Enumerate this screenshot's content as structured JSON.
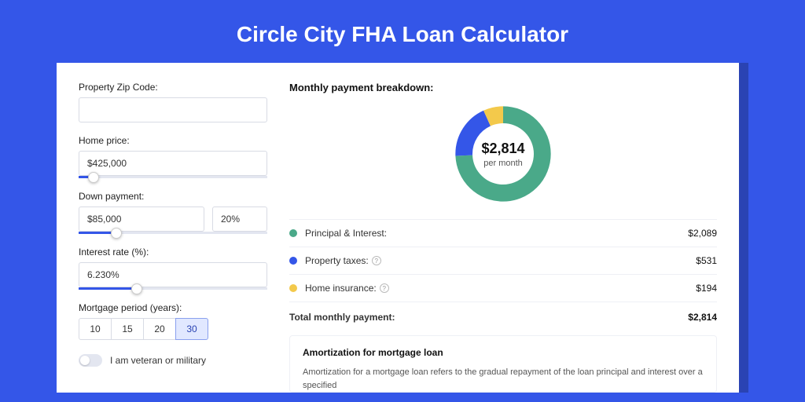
{
  "page": {
    "title": "Circle City FHA Loan Calculator",
    "bg_color": "#3456e8",
    "shadow_color": "#2a43b3",
    "card_bg": "#ffffff"
  },
  "form": {
    "zip": {
      "label": "Property Zip Code:",
      "value": ""
    },
    "home_price": {
      "label": "Home price:",
      "value": "$425,000",
      "slider_pct": 8
    },
    "down_payment": {
      "label": "Down payment:",
      "amount": "$85,000",
      "pct": "20%",
      "slider_pct": 20
    },
    "interest_rate": {
      "label": "Interest rate (%):",
      "value": "6.230%",
      "slider_pct": 31
    },
    "period": {
      "label": "Mortgage period (years):",
      "options": [
        "10",
        "15",
        "20",
        "30"
      ],
      "active": "30"
    },
    "veteran": {
      "label": "I am veteran or military",
      "on": false
    }
  },
  "breakdown": {
    "title": "Monthly payment breakdown:",
    "center_amount": "$2,814",
    "center_sub": "per month",
    "donut": {
      "type": "donut",
      "radius": 46,
      "stroke_width": 20,
      "circumference": 289.027,
      "background_color": "#ffffff",
      "slices": [
        {
          "key": "principal_interest",
          "value": 2089,
          "fraction": 0.742,
          "color": "#4aa989"
        },
        {
          "key": "property_taxes",
          "value": 531,
          "fraction": 0.189,
          "color": "#3456e8"
        },
        {
          "key": "home_insurance",
          "value": 194,
          "fraction": 0.069,
          "color": "#f3c94b"
        }
      ]
    },
    "items": [
      {
        "label": "Principal & Interest:",
        "value": "$2,089",
        "color": "#4aa989",
        "info": false
      },
      {
        "label": "Property taxes:",
        "value": "$531",
        "color": "#3456e8",
        "info": true
      },
      {
        "label": "Home insurance:",
        "value": "$194",
        "color": "#f3c94b",
        "info": true
      }
    ],
    "total": {
      "label": "Total monthly payment:",
      "value": "$2,814"
    }
  },
  "amort": {
    "title": "Amortization for mortgage loan",
    "text": "Amortization for a mortgage loan refers to the gradual repayment of the loan principal and interest over a specified"
  }
}
